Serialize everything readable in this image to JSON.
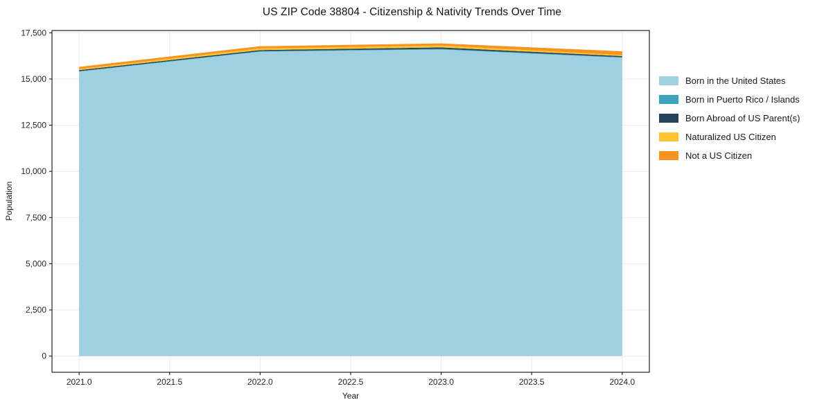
{
  "chart_data": {
    "type": "area",
    "stacked": true,
    "title": "US ZIP Code 38804 - Citizenship & Nativity Trends Over Time",
    "xlabel": "Year",
    "ylabel": "Population",
    "x": [
      2021,
      2022,
      2023,
      2024
    ],
    "series": [
      {
        "name": "Born in the United States",
        "color": "#9fd0e2",
        "values": [
          15400,
          16480,
          16600,
          16150
        ]
      },
      {
        "name": "Born in Puerto Rico / Islands",
        "color": "#3ba3bb",
        "values": [
          20,
          25,
          30,
          30
        ]
      },
      {
        "name": "Born Abroad of US Parent(s)",
        "color": "#26455a",
        "values": [
          60,
          60,
          80,
          60
        ]
      },
      {
        "name": "Naturalized US Citizen",
        "color": "#fcc330",
        "values": [
          60,
          90,
          100,
          55
        ]
      },
      {
        "name": "Not a US Citizen",
        "color": "#f7941f",
        "values": [
          115,
          120,
          115,
          205
        ]
      }
    ],
    "xlim": [
      2020.85,
      2024.15
    ],
    "ylim": [
      -875,
      17625
    ],
    "xticks": [
      2021.0,
      2021.5,
      2022.0,
      2022.5,
      2023.0,
      2023.5,
      2024.0
    ],
    "yticks": [
      0,
      2500,
      5000,
      7500,
      10000,
      12500,
      15000,
      17500
    ],
    "grid": true,
    "legend_position": "right-outside",
    "colors": {
      "axis": "#222222",
      "grid": "#ebebeb",
      "tick_label": "#262626",
      "background": "#ffffff"
    }
  }
}
